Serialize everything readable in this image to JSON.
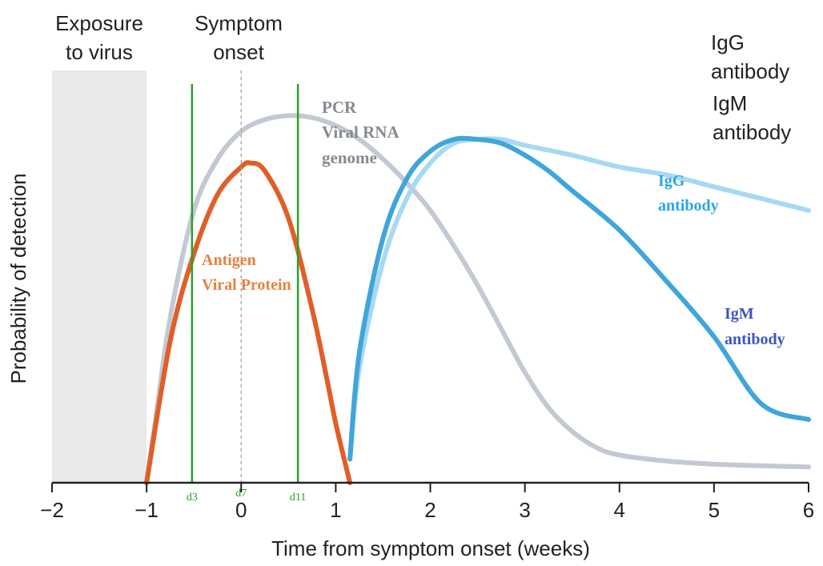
{
  "chart_data": {
    "type": "line",
    "xlabel": "Time from symptom onset (weeks)",
    "ylabel": "Probability of detection",
    "xlim": [
      -2,
      6
    ],
    "ylim": [
      0,
      1
    ],
    "x_ticks": [
      "−2",
      "−1",
      "0",
      "1",
      "2",
      "3",
      "4",
      "5",
      "6"
    ],
    "grid": false,
    "shaded_region": {
      "x": [
        -2,
        -1
      ],
      "label_line1": "Exposure",
      "label_line2": "to virus",
      "color": "#e9e9e9"
    },
    "reference_line": {
      "x": 0,
      "label_line1": "Symptom",
      "label_line2": "onset",
      "style": "dashed"
    },
    "markers": [
      {
        "label": "d3",
        "x": -0.52
      },
      {
        "label": "d7",
        "x": 0.0
      },
      {
        "label": "d11",
        "x": 0.6
      }
    ],
    "marker_color": "#2aa02a",
    "legend": {
      "placement": "top-right",
      "entries": [
        [
          "IgG",
          "antibody"
        ],
        [
          "IgM",
          "antibody"
        ]
      ]
    },
    "series": [
      {
        "name": "PCR Viral RNA genome",
        "label_lines": [
          "PCR",
          "Viral RNA",
          "genome"
        ],
        "color": "#c3c9d3",
        "label_color": "#858a92",
        "x": [
          -1.0,
          -0.9,
          -0.75,
          -0.5,
          -0.25,
          0.0,
          0.25,
          0.5,
          0.75,
          1.0,
          1.25,
          1.5,
          1.75,
          2.0,
          2.25,
          2.5,
          2.75,
          3.0,
          3.25,
          3.5,
          3.75,
          4.0,
          4.5,
          5.0,
          5.5,
          6.0
        ],
        "y": [
          0.0,
          0.17,
          0.42,
          0.69,
          0.82,
          0.89,
          0.92,
          0.93,
          0.925,
          0.905,
          0.87,
          0.82,
          0.76,
          0.69,
          0.6,
          0.5,
          0.39,
          0.28,
          0.19,
          0.13,
          0.09,
          0.07,
          0.055,
          0.047,
          0.043,
          0.04
        ]
      },
      {
        "name": "Antigen Viral Protein",
        "label_lines": [
          "Antigen",
          "Viral Protein"
        ],
        "color": "#e05f28",
        "label_color": "#e8813d",
        "x": [
          -1.0,
          -0.75,
          -0.5,
          -0.25,
          0.0,
          0.1,
          0.25,
          0.5,
          0.75,
          0.9,
          1.0,
          1.15
        ],
        "y": [
          0.0,
          0.36,
          0.58,
          0.73,
          0.8,
          0.81,
          0.79,
          0.67,
          0.44,
          0.27,
          0.15,
          0.0
        ]
      },
      {
        "name": "IgG antibody",
        "label_lines": [
          "IgG",
          "antibody"
        ],
        "color": "#a7d9f2",
        "label_color": "#29a7e1",
        "x": [
          1.15,
          1.25,
          1.5,
          1.75,
          2.0,
          2.25,
          2.5,
          2.75,
          3.0,
          3.5,
          4.0,
          4.5,
          5.0,
          5.5,
          6.0
        ],
        "y": [
          0.06,
          0.29,
          0.56,
          0.72,
          0.81,
          0.86,
          0.87,
          0.87,
          0.855,
          0.83,
          0.8,
          0.78,
          0.75,
          0.72,
          0.69
        ]
      },
      {
        "name": "IgM antibody",
        "label_lines": [
          "IgM",
          "antibody"
        ],
        "color": "#3fa6d9",
        "label_color": "#3b55c0",
        "x": [
          1.15,
          1.25,
          1.5,
          1.75,
          2.0,
          2.25,
          2.5,
          2.75,
          3.0,
          3.25,
          3.5,
          4.0,
          4.5,
          5.0,
          5.5,
          6.0
        ],
        "y": [
          0.06,
          0.33,
          0.62,
          0.77,
          0.84,
          0.87,
          0.87,
          0.86,
          0.83,
          0.79,
          0.74,
          0.64,
          0.51,
          0.37,
          0.2,
          0.16
        ]
      }
    ]
  }
}
